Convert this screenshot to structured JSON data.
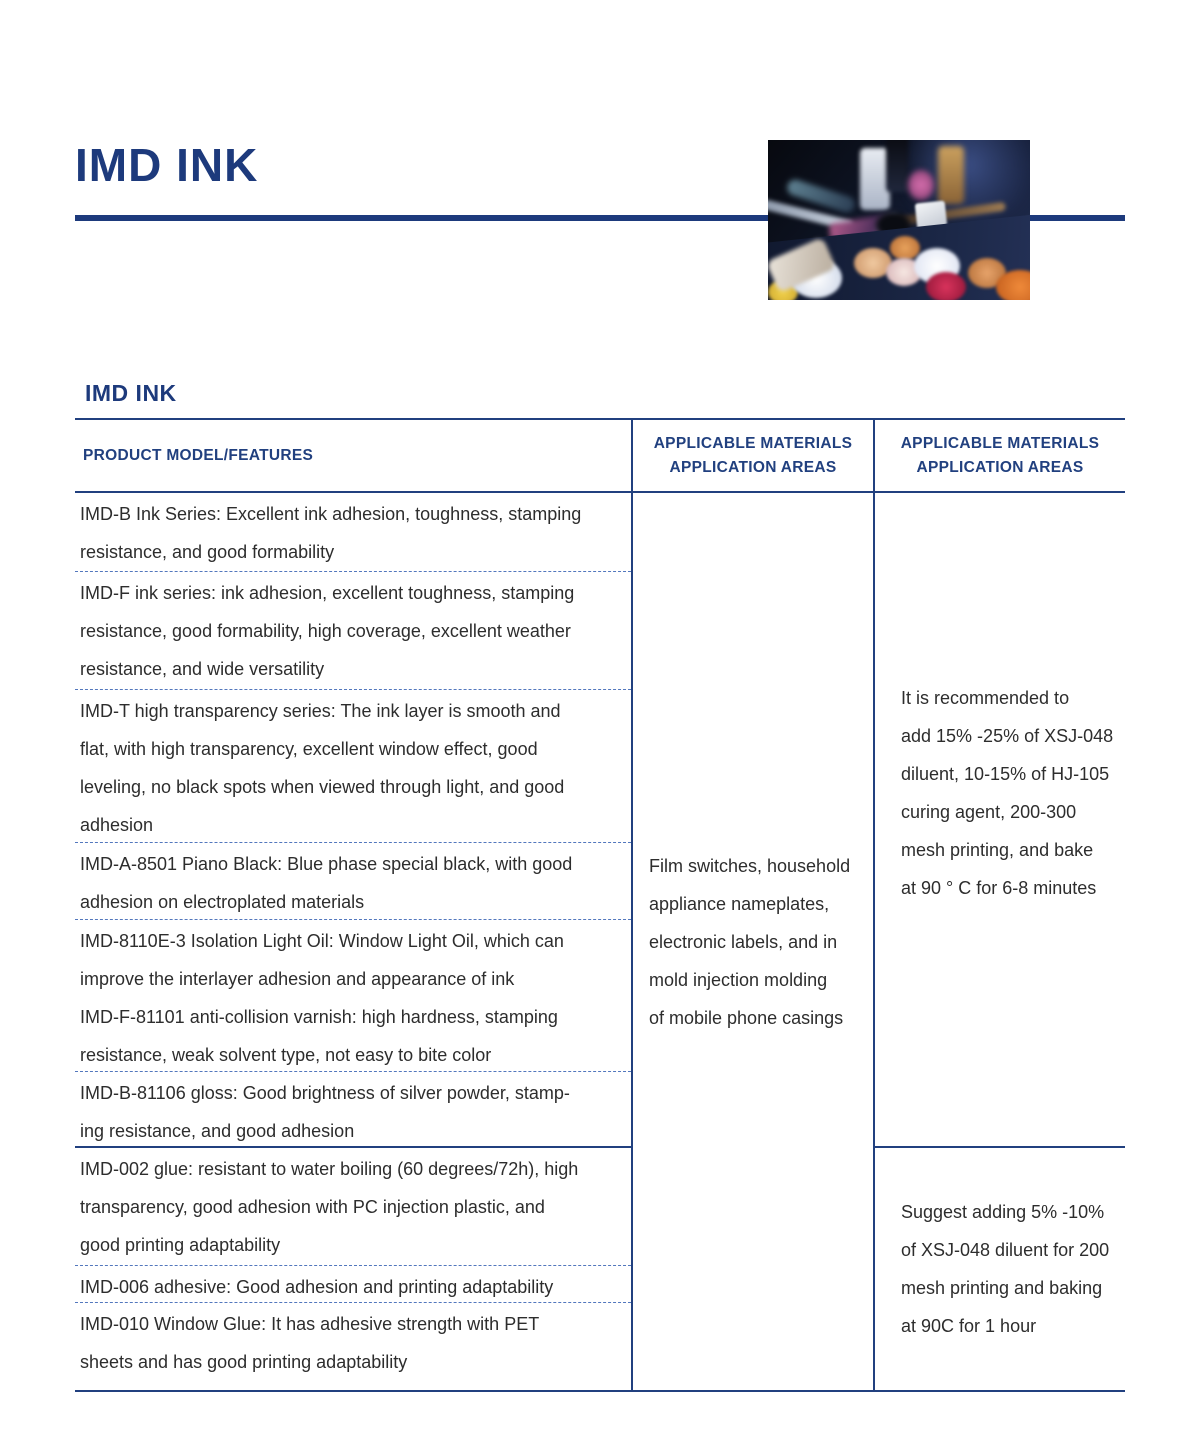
{
  "page": {
    "title": "IMD INK",
    "section_title": "IMD INK"
  },
  "colors": {
    "navy_title": "#1d3a7c",
    "table_border": "#21407f",
    "dashed_divider": "#5377bd",
    "body_text": "#2d2d2d"
  },
  "photo": {
    "description": "cosmetics-makeup-palette-photo"
  },
  "table": {
    "headers": {
      "col1": "PRODUCT MODEL/FEATURES",
      "col2": "APPLICABLE MATERIALS\nAPPLICATION AREAS",
      "col3": "APPLICABLE MATERIALS\nAPPLICATION AREAS"
    },
    "rows": [
      {
        "text": "IMD-B Ink Series: Excellent ink adhesion, toughness, stamping\nresistance, and good formability"
      },
      {
        "text": "IMD-F ink series: ink adhesion, excellent toughness, stamping\nresistance, good formability, high coverage, excellent weather\nresistance, and wide versatility"
      },
      {
        "text": "IMD-T high transparency series: The ink layer is smooth and\nflat, with high transparency, excellent window effect, good\nleveling, no black spots when viewed through light, and good\nadhesion"
      },
      {
        "text": "IMD-A-8501 Piano Black: Blue phase special black, with good\nadhesion on electroplated materials"
      },
      {
        "text": "IMD-8110E-3 Isolation Light Oil: Window Light Oil, which can\nimprove the interlayer adhesion and appearance of ink"
      },
      {
        "text": "IMD-F-81101 anti-collision varnish: high hardness, stamping\nresistance, weak solvent type, not easy to bite color"
      },
      {
        "text": "IMD-B-81106 gloss: Good brightness of silver powder, stamp-\ning resistance, and good adhesion"
      },
      {
        "text": "IMD-002 glue: resistant to water boiling (60 degrees/72h), high\ntransparency, good adhesion with PC injection plastic, and\ngood printing adaptability"
      },
      {
        "text": "IMD-006 adhesive: Good adhesion and printing adaptability"
      },
      {
        "text": "IMD-010 Window Glue: It has adhesive strength with PET\nsheets and has good printing adaptability"
      }
    ],
    "applications": "Film switches, household\nappliance nameplates,\nelectronic labels, and in\nmold injection molding\nof mobile phone casings",
    "recommendation_top": "It is recommended to\nadd 15% -25% of XSJ-048\ndiluent, 10-15% of HJ-105\ncuring agent, 200-300\nmesh printing, and bake\nat 90 ° C for 6-8 minutes",
    "recommendation_bottom": "Suggest adding 5% -10%\nof XSJ-048 diluent for 200\nmesh printing and baking\nat 90C for 1 hour"
  }
}
